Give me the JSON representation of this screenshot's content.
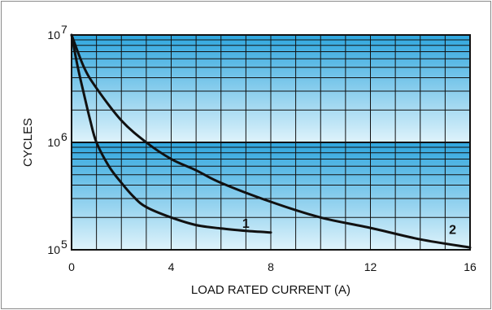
{
  "chart_data": {
    "type": "line",
    "title": "",
    "xlabel": "LOAD RATED CURRENT (A)",
    "ylabel": "CYCLES",
    "xlim": [
      0,
      16
    ],
    "ylim": [
      100000,
      10000000
    ],
    "yscale": "log",
    "grid": true,
    "x_ticks": [
      0,
      4,
      8,
      12,
      16
    ],
    "x_tick_labels": [
      "0",
      "4",
      "8",
      "12",
      "16"
    ],
    "y_ticks": [
      {
        "value": 10000000,
        "base": "10",
        "exp": "7"
      },
      {
        "value": 1000000,
        "base": "10",
        "exp": "6"
      },
      {
        "value": 100000,
        "base": "10",
        "exp": "5"
      }
    ],
    "series": [
      {
        "name": "1",
        "label_at": {
          "x": 7.0,
          "y": 160000
        },
        "points": [
          [
            0,
            10000000
          ],
          [
            0.25,
            5000000
          ],
          [
            0.5,
            2800000
          ],
          [
            0.75,
            1600000
          ],
          [
            1,
            1000000
          ],
          [
            1.5,
            600000
          ],
          [
            2,
            420000
          ],
          [
            2.5,
            310000
          ],
          [
            3,
            250000
          ],
          [
            4,
            200000
          ],
          [
            5,
            170000
          ],
          [
            6,
            158000
          ],
          [
            7,
            150000
          ],
          [
            8,
            145000
          ]
        ]
      },
      {
        "name": "2",
        "label_at": {
          "x": 15.3,
          "y": 140000
        },
        "points": [
          [
            0,
            10000000
          ],
          [
            0.5,
            5000000
          ],
          [
            1,
            3200000
          ],
          [
            2,
            1600000
          ],
          [
            3,
            1000000
          ],
          [
            4,
            700000
          ],
          [
            5,
            550000
          ],
          [
            6,
            420000
          ],
          [
            8,
            280000
          ],
          [
            10,
            200000
          ],
          [
            12,
            160000
          ],
          [
            14,
            125000
          ],
          [
            16,
            105000
          ]
        ]
      }
    ],
    "colors": {
      "band_top": "#2fa6de",
      "band_bottom": "#dff3fb",
      "grid": "#111111",
      "curve": "#111111"
    }
  }
}
